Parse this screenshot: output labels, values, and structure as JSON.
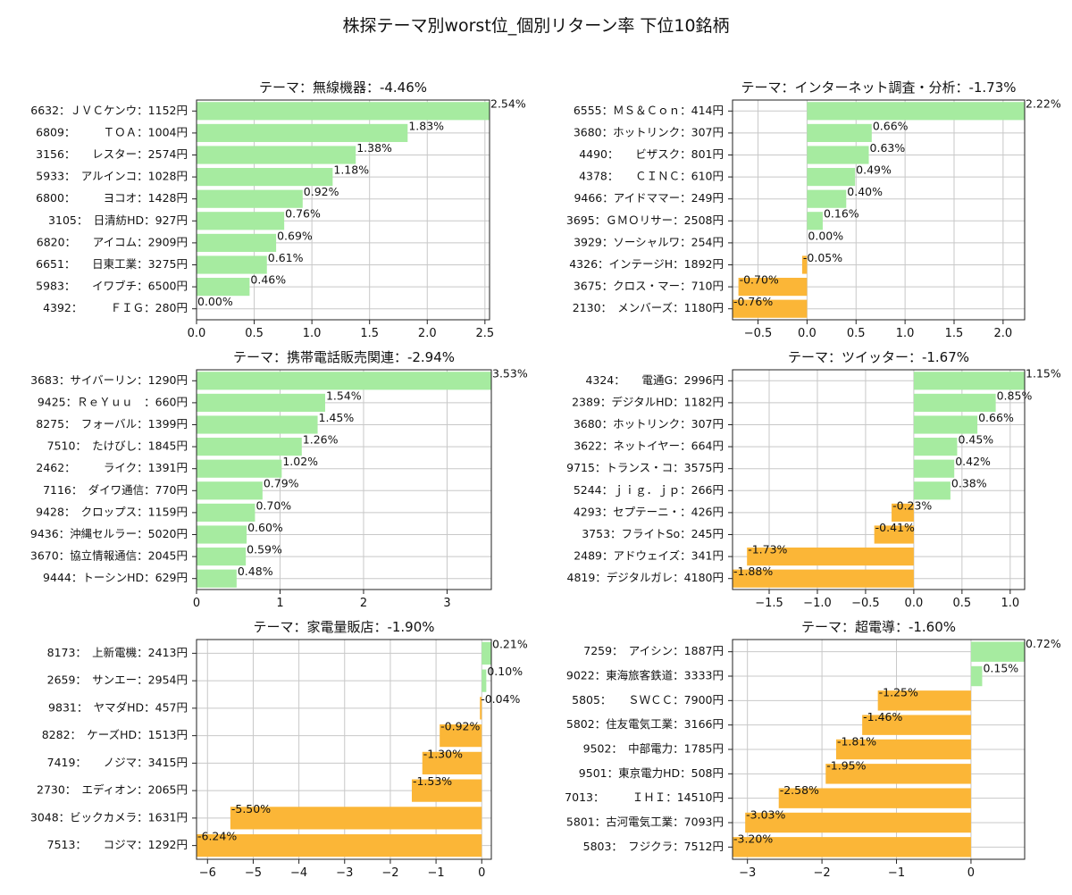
{
  "suptitle": "株探テーマ別worst位_個別リターン率 下位10銘柄",
  "colors": {
    "positive": "#a6eba0",
    "negative": "#fbb637",
    "grid": "#c8c8c8"
  },
  "chart_data": [
    {
      "type": "bar",
      "orientation": "horizontal",
      "title": "テーマ：無線機器：-4.46%",
      "categories": [
        "6632：ＪＶＣケンウ：1152円",
        "6809：　　　ＴＯＡ：1004円",
        "3156：　　レスター：2574円",
        "5933：　アルインコ：1028円",
        "6800：　　　ヨコオ：1428円",
        "3105：　日清紡HD：927円",
        "6820：　　アイコム：2909円",
        "6651：　　日東工業：3275円",
        "5983：　　イワブチ：6500円",
        "4392：　　　ＦＩＧ：280円"
      ],
      "values": [
        2.54,
        1.83,
        1.38,
        1.18,
        0.92,
        0.76,
        0.69,
        0.61,
        0.46,
        0.0
      ],
      "value_labels": [
        "2.54%",
        "1.83%",
        "1.38%",
        "1.18%",
        "0.92%",
        "0.76%",
        "0.69%",
        "0.61%",
        "0.46%",
        "0.00%"
      ],
      "xlim": [
        0,
        2.54
      ],
      "xticks": [
        0,
        0.5,
        1,
        1.5,
        2,
        2.5
      ],
      "xtick_labels": [
        "0.0",
        "0.5",
        "1.0",
        "1.5",
        "2.0",
        "2.5"
      ],
      "grid": true
    },
    {
      "type": "bar",
      "orientation": "horizontal",
      "title": "テーマ：インターネット調査・分析：-1.73%",
      "categories": [
        "6555：ＭＳ＆Ｃｏｎ：414円",
        "3680：ホットリンク：307円",
        "4490：　　ビザスク：801円",
        "4378：　　ＣＩＮＣ：610円",
        "9466：アイドママー：249円",
        "3695：ＧＭＯリサー：2508円",
        "3929：ソーシャルワ：254円",
        "4326：インテージH：1892円",
        "3675：クロス・マー：710円",
        "2130：　メンバーズ：1180円"
      ],
      "values": [
        2.22,
        0.66,
        0.63,
        0.49,
        0.4,
        0.16,
        0.0,
        -0.05,
        -0.7,
        -0.76
      ],
      "value_labels": [
        "2.22%",
        "0.66%",
        "0.63%",
        "0.49%",
        "0.40%",
        "0.16%",
        "0.00%",
        "-0.05%",
        "-0.70%",
        "-0.76%"
      ],
      "xlim": [
        -0.76,
        2.22
      ],
      "xticks": [
        -0.5,
        0,
        0.5,
        1,
        1.5,
        2
      ],
      "xtick_labels": [
        "−0.5",
        "0.0",
        "0.5",
        "1.0",
        "1.5",
        "2.0"
      ],
      "grid": true
    },
    {
      "type": "bar",
      "orientation": "horizontal",
      "title": "テーマ：携帯電話販売関連：-2.94%",
      "categories": [
        "3683：サイバーリン：1290円",
        "9425：ＲｅＹｕｕ　：660円",
        "8275：　フォーバル：1399円",
        "7510：　たけびし：1845円",
        "2462：　　　ライク：1391円",
        "7116：　ダイワ通信：770円",
        "9428：　クロップス：1159円",
        "9436：沖縄セルラー：5020円",
        "3670：協立情報通信：2045円",
        "9444：トーシンHD：629円"
      ],
      "values": [
        3.53,
        1.54,
        1.45,
        1.26,
        1.02,
        0.79,
        0.7,
        0.6,
        0.59,
        0.48
      ],
      "value_labels": [
        "3.53%",
        "1.54%",
        "1.45%",
        "1.26%",
        "1.02%",
        "0.79%",
        "0.70%",
        "0.60%",
        "0.59%",
        "0.48%"
      ],
      "xlim": [
        0,
        3.53
      ],
      "xticks": [
        0,
        1,
        2,
        3
      ],
      "xtick_labels": [
        "0",
        "1",
        "2",
        "3"
      ],
      "grid": true
    },
    {
      "type": "bar",
      "orientation": "horizontal",
      "title": "テーマ：ツイッター：-1.67%",
      "categories": [
        "4324：　　電通G：2996円",
        "2389：デジタルHD：1182円",
        "3680：ホットリンク：307円",
        "3622：ネットイヤー：664円",
        "9715：トランス・コ：3575円",
        "5244：ｊｉｇ．ｊｐ：266円",
        "4293：セプテーニ・：426円",
        "3753：フライトSo：245円",
        "2489：アドウェイズ：341円",
        "4819：デジタルガレ：4180円"
      ],
      "values": [
        1.15,
        0.85,
        0.66,
        0.45,
        0.42,
        0.38,
        -0.23,
        -0.41,
        -1.73,
        -1.88
      ],
      "value_labels": [
        "1.15%",
        "0.85%",
        "0.66%",
        "0.45%",
        "0.42%",
        "0.38%",
        "-0.23%",
        "-0.41%",
        "-1.73%",
        "-1.88%"
      ],
      "xlim": [
        -1.88,
        1.15
      ],
      "xticks": [
        -1.5,
        -1,
        -0.5,
        0,
        0.5,
        1
      ],
      "xtick_labels": [
        "−1.5",
        "−1.0",
        "−0.5",
        "0.0",
        "0.5",
        "1.0"
      ],
      "grid": true
    },
    {
      "type": "bar",
      "orientation": "horizontal",
      "title": "テーマ：家電量販店：-1.90%",
      "categories": [
        "8173：　上新電機：2413円",
        "2659：　サンエー：2954円",
        "9831：　ヤマダHD：457円",
        "8282：　ケーズHD：1513円",
        "7419：　　ノジマ：3415円",
        "2730：　エディオン：2065円",
        "3048：ビックカメラ：1631円",
        "7513：　　コジマ：1292円"
      ],
      "values": [
        0.21,
        0.1,
        -0.04,
        -0.92,
        -1.3,
        -1.53,
        -5.5,
        -6.24
      ],
      "value_labels": [
        "0.21%",
        "0.10%",
        "-0.04%",
        "-0.92%",
        "-1.30%",
        "-1.53%",
        "-5.50%",
        "-6.24%"
      ],
      "xlim": [
        -6.24,
        0.21
      ],
      "xticks": [
        -6,
        -5,
        -4,
        -3,
        -2,
        -1,
        0
      ],
      "xtick_labels": [
        "−6",
        "−5",
        "−4",
        "−3",
        "−2",
        "−1",
        "0"
      ],
      "grid": true
    },
    {
      "type": "bar",
      "orientation": "horizontal",
      "title": "テーマ：超電導：-1.60%",
      "categories": [
        "7259：　アイシン：1887円",
        "9022：東海旅客鉄道：3333円",
        "5805：　　ＳＷＣＣ：7900円",
        "5802：住友電気工業：3166円",
        "9502：　中部電力：1785円",
        "9501：東京電力HD：508円",
        "7013：　　　ＩＨＩ：14510円",
        "5801：古河電気工業：7093円",
        "5803：　フジクラ：7512円"
      ],
      "values": [
        0.72,
        0.15,
        -1.25,
        -1.46,
        -1.81,
        -1.95,
        -2.58,
        -3.03,
        -3.2
      ],
      "value_labels": [
        "0.72%",
        "0.15%",
        "-1.25%",
        "-1.46%",
        "-1.81%",
        "-1.95%",
        "-2.58%",
        "-3.03%",
        "-3.20%"
      ],
      "xlim": [
        -3.2,
        0.72
      ],
      "xticks": [
        -3,
        -2,
        -1,
        0
      ],
      "xtick_labels": [
        "−3",
        "−2",
        "−1",
        "0"
      ],
      "grid": true
    }
  ]
}
